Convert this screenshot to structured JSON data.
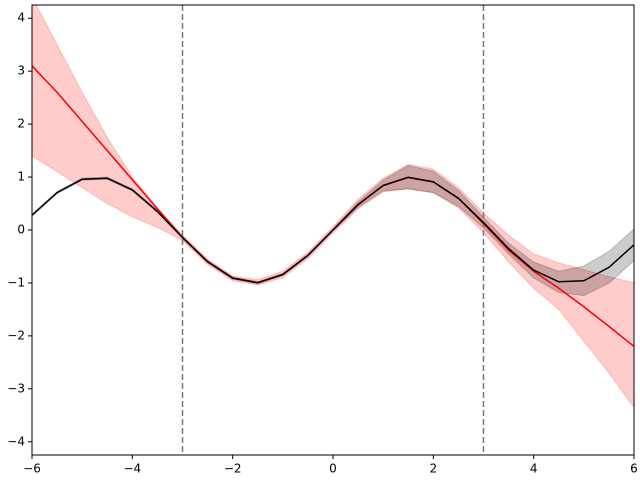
{
  "chart_data": {
    "type": "line",
    "x": [
      -6,
      -5.5,
      -5,
      -4.5,
      -4,
      -3.5,
      -3,
      -2.5,
      -2,
      -1.5,
      -1,
      -0.5,
      0,
      0.5,
      1,
      1.5,
      2,
      2.5,
      3,
      3.5,
      4,
      4.5,
      5,
      5.5,
      6
    ],
    "series": [
      {
        "color": "#ff0000",
        "values": [
          3.1,
          2.6,
          2.05,
          1.5,
          0.95,
          0.4,
          -0.14,
          -0.6,
          -0.91,
          -0.99,
          -0.84,
          -0.48,
          0,
          0.48,
          0.84,
          0.99,
          0.91,
          0.6,
          0.12,
          -0.38,
          -0.78,
          -1.1,
          -1.45,
          -1.82,
          -2.2
        ],
        "upper": [
          4.4,
          3.5,
          2.6,
          1.75,
          1.0,
          0.42,
          -0.1,
          -0.55,
          -0.87,
          -0.94,
          -0.78,
          -0.42,
          0.06,
          0.58,
          0.98,
          1.24,
          1.15,
          0.8,
          0.32,
          -0.1,
          -0.45,
          -0.62,
          -0.75,
          -0.88,
          -1.0
        ],
        "lower": [
          1.4,
          1.1,
          0.8,
          0.5,
          0.25,
          0.05,
          -0.2,
          -0.65,
          -0.96,
          -1.04,
          -0.9,
          -0.54,
          -0.06,
          0.4,
          0.72,
          0.78,
          0.7,
          0.42,
          -0.05,
          -0.6,
          -1.1,
          -1.5,
          -2.1,
          -2.7,
          -3.35
        ]
      },
      {
        "color": "#000000",
        "values": [
          0.279,
          0.706,
          0.959,
          0.978,
          0.757,
          0.351,
          -0.141,
          -0.598,
          -0.909,
          -0.997,
          -0.841,
          -0.479,
          0,
          0.479,
          0.841,
          0.997,
          0.909,
          0.598,
          0.141,
          -0.351,
          -0.757,
          -0.978,
          -0.959,
          -0.706,
          -0.279
        ],
        "upper": [
          0.299,
          0.726,
          0.979,
          0.998,
          0.777,
          0.371,
          -0.121,
          -0.578,
          -0.889,
          -0.977,
          -0.821,
          -0.459,
          0.02,
          0.529,
          0.941,
          1.217,
          1.109,
          0.748,
          0.241,
          -0.251,
          -0.607,
          -0.778,
          -0.679,
          -0.406,
          0.021
        ],
        "lower": [
          0.259,
          0.686,
          0.939,
          0.958,
          0.737,
          0.331,
          -0.161,
          -0.618,
          -0.929,
          -1.017,
          -0.861,
          -0.499,
          -0.02,
          0.429,
          0.741,
          0.777,
          0.709,
          0.448,
          0.041,
          -0.451,
          -0.907,
          -1.178,
          -1.239,
          -1.006,
          -0.579
        ]
      }
    ],
    "vlines": [
      -3,
      3
    ],
    "xlim": [
      -6,
      6
    ],
    "ylim": [
      -4.25,
      4.25
    ],
    "xticks": [
      {
        "value": -6,
        "label": "−6"
      },
      {
        "value": -4,
        "label": "−4"
      },
      {
        "value": -2,
        "label": "−2"
      },
      0,
      2,
      4,
      6
    ],
    "yticks": [
      {
        "value": -4,
        "label": "−4"
      },
      {
        "value": -3,
        "label": "−3"
      },
      {
        "value": -2,
        "label": "−2"
      },
      {
        "value": -1,
        "label": "−1"
      },
      0,
      1,
      2,
      3,
      4
    ]
  }
}
